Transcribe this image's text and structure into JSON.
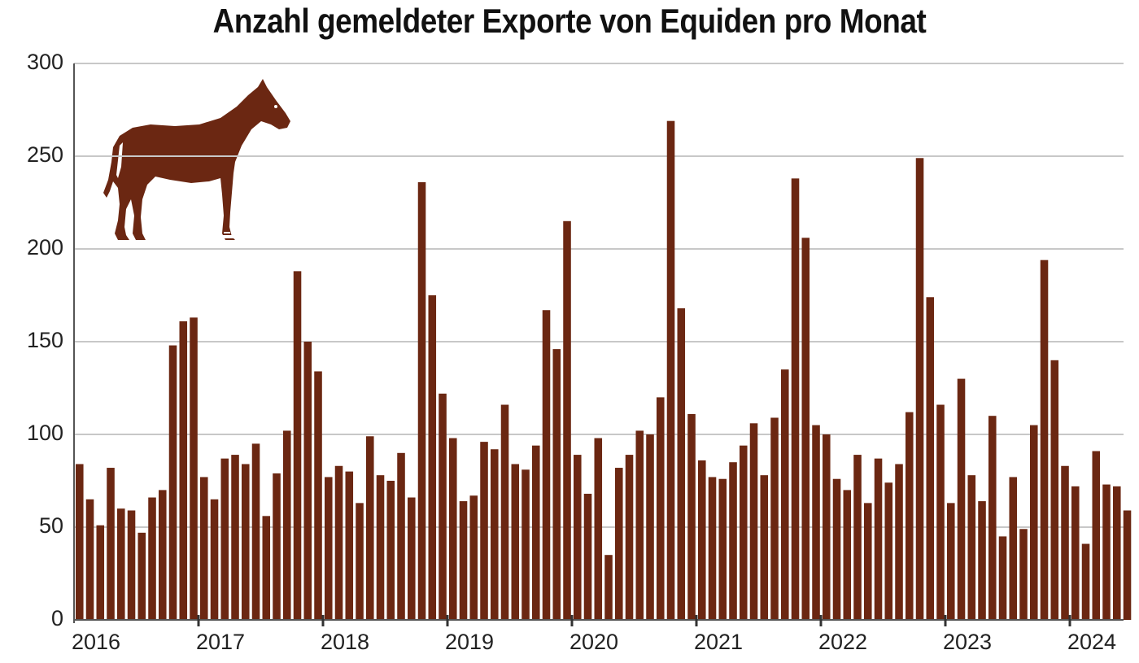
{
  "title": "Anzahl gemeldeter Exporte von Equiden pro Monat",
  "colors": {
    "bar": "#6b2712",
    "grid": "#c8c8c8",
    "axis": "#555555",
    "horse": "#6b2712"
  },
  "icon": "horse-silhouette-icon",
  "chart_data": {
    "type": "bar",
    "title": "Anzahl gemeldeter Exporte von Equiden pro Monat",
    "xlabel": "",
    "ylabel": "",
    "ylim": [
      0,
      300
    ],
    "yticks": [
      0,
      50,
      100,
      150,
      200,
      250,
      300
    ],
    "xtick_labels": [
      "2016",
      "2017",
      "2018",
      "2019",
      "2020",
      "2021",
      "2022",
      "2023",
      "2024"
    ],
    "grid": true,
    "legend": null,
    "frequency": "monthly",
    "start": "2016-01",
    "values": [
      84,
      65,
      51,
      82,
      60,
      59,
      47,
      66,
      70,
      148,
      161,
      163,
      77,
      65,
      87,
      89,
      84,
      95,
      56,
      79,
      102,
      188,
      150,
      134,
      77,
      83,
      80,
      63,
      99,
      78,
      75,
      90,
      66,
      236,
      175,
      122,
      98,
      64,
      67,
      96,
      92,
      116,
      84,
      81,
      94,
      167,
      146,
      215,
      89,
      68,
      98,
      35,
      82,
      89,
      102,
      100,
      120,
      269,
      168,
      111,
      86,
      77,
      76,
      85,
      94,
      106,
      78,
      109,
      135,
      238,
      206,
      105,
      100,
      76,
      70,
      89,
      63,
      87,
      74,
      84,
      112,
      249,
      174,
      116,
      63,
      130,
      78,
      64,
      110,
      45,
      77,
      49,
      105,
      194,
      140,
      83,
      72,
      41,
      91,
      73,
      72,
      59
    ]
  }
}
